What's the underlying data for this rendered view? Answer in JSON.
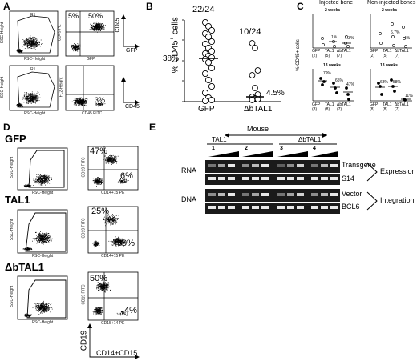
{
  "panel_A": {
    "label": "A",
    "plot1": {
      "xlabel": "FSC-Height",
      "ylabel": "SSC-Height",
      "gate": "R1"
    },
    "plot2": {
      "xlabel": "GFP",
      "ylabel": "CD45 PE",
      "pct_ul": "5%",
      "pct_ur": "50%"
    },
    "plot3": {
      "xlabel": "FSC-Height",
      "ylabel": "SSC-Height",
      "gate": "R1"
    },
    "plot4": {
      "xlabel": "CD45 FITC",
      "ylabel": "FL2-Height",
      "pct_lr": "3%"
    },
    "axis_row1": {
      "y": "CD45",
      "x": "GFP"
    },
    "axis_row2": {
      "x": "CD45"
    }
  },
  "panel_B": {
    "label": "B",
    "ylabel": "% CD45+ cells",
    "ylabel_main": "% CD45",
    "ylabel_sup": "+",
    "ylabel_tail": " cells",
    "count_gfp": "22/24",
    "count_dbtal1": "10/24",
    "pct_gfp": "38%",
    "pct_dbtal1": "4.5%"
  },
  "panel_C": {
    "label": "C",
    "title_injected": "Injected bone",
    "title_noninjected": "Non-injected bones",
    "ylabel": "% CD45+ cells",
    "top_left": {
      "time": "2 weeks",
      "categories": [
        "GFP",
        "TAL1",
        "ΔbTAL1"
      ],
      "n": [
        "(2)",
        "(5)",
        "(7)"
      ],
      "ann": [
        "1%",
        "1.3%"
      ]
    },
    "top_right": {
      "time": "2 weeks",
      "categories": [
        "GFP",
        "TAL1",
        "ΔbTAL1"
      ],
      "n": [
        "(2)",
        "(5)",
        "(7)"
      ],
      "ann": [
        "6.7%",
        "4%"
      ]
    },
    "bottom_left": {
      "time": "13 weeks",
      "categories": [
        "GFP",
        "TAL1",
        "ΔbTAL1"
      ],
      "n": [
        "(8)",
        "(8)",
        "(7)"
      ],
      "ann": [
        "79%",
        "65%",
        "47%"
      ]
    },
    "bottom_right": {
      "time": "13 weeks",
      "categories": [
        "GFP",
        "TAL1",
        "ΔbTAL1"
      ],
      "n": [
        "(8)",
        "(8)",
        "(7)"
      ],
      "ann": [
        "68%",
        "58%",
        "11%"
      ]
    }
  },
  "panel_D": {
    "label": "D",
    "rows": [
      {
        "name": "GFP",
        "xlabel_l": "FSC-Height",
        "ylabel_l": "SSC-Height",
        "xlabel_r": "CD14+15 PE",
        "ylabel_r": "CD19 FITC",
        "pct_ul": "47%",
        "pct_lr": "6%"
      },
      {
        "name": "TAL1",
        "xlabel_l": "FSC-Height",
        "ylabel_l": "SSC-Height",
        "xlabel_r": "CD14+15 PE",
        "ylabel_r": "CD19 FITC",
        "pct_ul": "25%",
        "pct_lr": "39%"
      },
      {
        "name": "ΔbTAL1",
        "xlabel_l": "FSC-Height",
        "ylabel_l": "SSC-Height",
        "xlabel_r": "CD15+14 PE",
        "ylabel_r": "CD19 FITC",
        "pct_ul": "50%",
        "pct_lr": "4%"
      }
    ],
    "axis_y": "CD19",
    "axis_x": "CD14+CD15"
  },
  "panel_E": {
    "label": "E",
    "mouse": "Mouse",
    "group_tal1": "TAL1",
    "group_dbtal1": "ΔbTAL1",
    "lanes": [
      "1",
      "2",
      "3",
      "4"
    ],
    "rna": "RNA",
    "dna": "DNA",
    "bands": [
      "Transgene",
      "S14",
      "Vector",
      "BCL6"
    ],
    "expression": "Expression",
    "integration": "Integration"
  }
}
